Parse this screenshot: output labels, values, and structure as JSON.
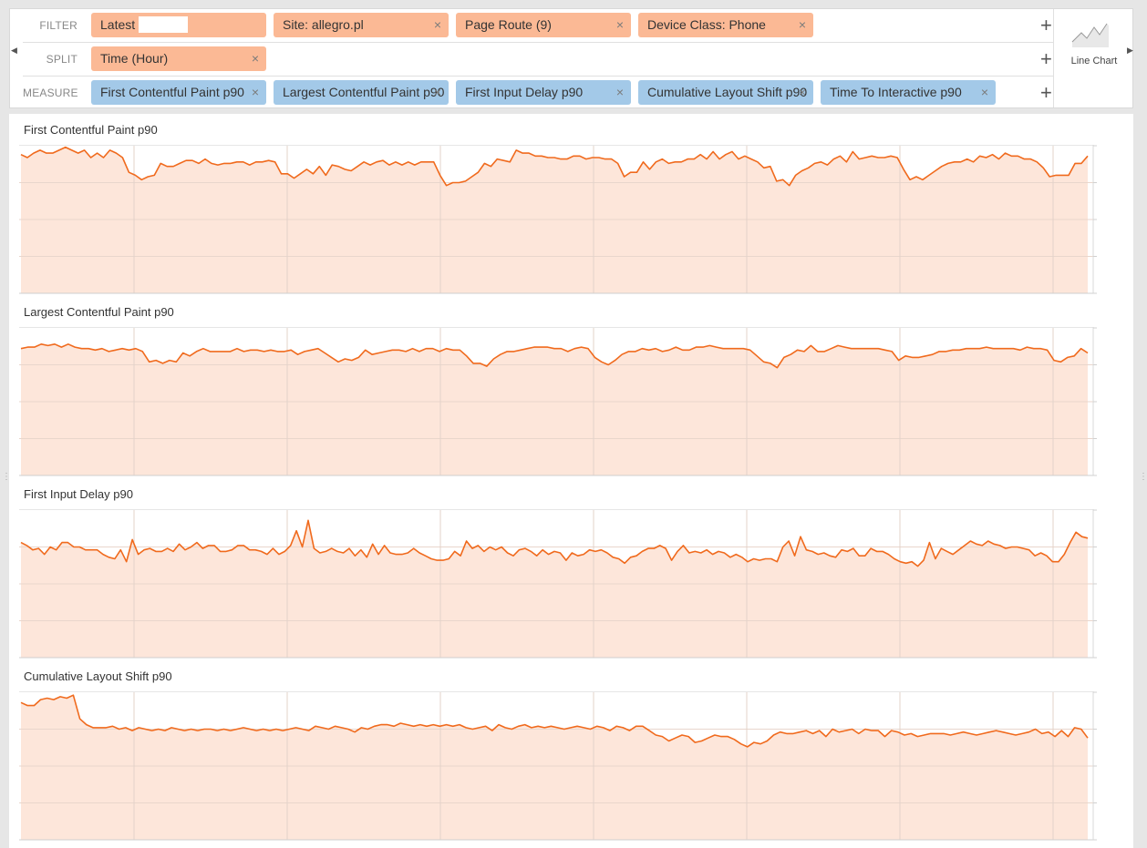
{
  "rows": {
    "filter": {
      "label": "FILTER",
      "pills": [
        {
          "label": "Latest"
        },
        {
          "label": "Site:  allegro.pl"
        },
        {
          "label": "Page Route  (9)"
        },
        {
          "label": "Device Class:  Phone"
        }
      ]
    },
    "split": {
      "label": "SPLIT",
      "pills": [
        {
          "label": "Time (Hour)"
        }
      ]
    },
    "measure": {
      "label": "MEASURE",
      "pills": [
        {
          "label": "First Contentful Paint p90"
        },
        {
          "label": "Largest Contentful Paint p90"
        },
        {
          "label": "First Input Delay p90"
        },
        {
          "label": "Cumulative Layout Shift p90"
        },
        {
          "label": "Time To Interactive p90"
        }
      ]
    }
  },
  "remove_glyph": "×",
  "add_glyph": "+",
  "visualization": {
    "label": "Line Chart",
    "icon": "line-chart-icon"
  },
  "colors": {
    "line": "#f06a1d",
    "fill": "#fde6da",
    "filter_pill": "#fbb995",
    "measure_pill": "#a3c9e8"
  },
  "chart_data": [
    {
      "type": "area",
      "title": "First Contentful Paint p90",
      "ylim": [
        0,
        1
      ],
      "series": [
        {
          "values": [
            0.94,
            0.92,
            0.95,
            0.97,
            0.95,
            0.95,
            0.97,
            0.99,
            0.97,
            0.95,
            0.97,
            0.92,
            0.95,
            0.92,
            0.97,
            0.95,
            0.92,
            0.82,
            0.8,
            0.77,
            0.79,
            0.8,
            0.88,
            0.86,
            0.86,
            0.88,
            0.9,
            0.9,
            0.88,
            0.91,
            0.88,
            0.87,
            0.88,
            0.88,
            0.89,
            0.89,
            0.87,
            0.89,
            0.89,
            0.9,
            0.89,
            0.81,
            0.81,
            0.78,
            0.81,
            0.84,
            0.81,
            0.86,
            0.8,
            0.87,
            0.86,
            0.84,
            0.83,
            0.86,
            0.89,
            0.87,
            0.89,
            0.9,
            0.87,
            0.89,
            0.87,
            0.89,
            0.87,
            0.89,
            0.89,
            0.89,
            0.8,
            0.73,
            0.75,
            0.75,
            0.76,
            0.79,
            0.82,
            0.88,
            0.86,
            0.91,
            0.9,
            0.89,
            0.97,
            0.95,
            0.95,
            0.93,
            0.93,
            0.92,
            0.92,
            0.91,
            0.91,
            0.93,
            0.93,
            0.91,
            0.92,
            0.92,
            0.91,
            0.91,
            0.88,
            0.79,
            0.82,
            0.82,
            0.89,
            0.84,
            0.89,
            0.91,
            0.88,
            0.89,
            0.89,
            0.91,
            0.91,
            0.94,
            0.91,
            0.96,
            0.91,
            0.94,
            0.96,
            0.91,
            0.93,
            0.91,
            0.89,
            0.85,
            0.86,
            0.76,
            0.77,
            0.73,
            0.8,
            0.83,
            0.85,
            0.88,
            0.89,
            0.87,
            0.91,
            0.93,
            0.89,
            0.96,
            0.91,
            0.92,
            0.93,
            0.92,
            0.92,
            0.93,
            0.92,
            0.84,
            0.77,
            0.79,
            0.77,
            0.8,
            0.83,
            0.86,
            0.88,
            0.89,
            0.89,
            0.91,
            0.89,
            0.93,
            0.92,
            0.94,
            0.91,
            0.95,
            0.93,
            0.93,
            0.91,
            0.91,
            0.89,
            0.85,
            0.79,
            0.8,
            0.8,
            0.8,
            0.88,
            0.88,
            0.93
          ]
        }
      ]
    },
    {
      "type": "area",
      "title": "Largest Contentful Paint p90",
      "ylim": [
        0,
        1
      ],
      "series": [
        {
          "values": [
            0.86,
            0.87,
            0.87,
            0.89,
            0.88,
            0.89,
            0.87,
            0.89,
            0.87,
            0.86,
            0.86,
            0.85,
            0.86,
            0.84,
            0.85,
            0.86,
            0.85,
            0.86,
            0.84,
            0.77,
            0.78,
            0.76,
            0.78,
            0.77,
            0.83,
            0.81,
            0.84,
            0.86,
            0.84,
            0.84,
            0.84,
            0.84,
            0.86,
            0.84,
            0.85,
            0.85,
            0.84,
            0.85,
            0.84,
            0.84,
            0.85,
            0.82,
            0.84,
            0.85,
            0.86,
            0.83,
            0.8,
            0.77,
            0.79,
            0.78,
            0.8,
            0.85,
            0.82,
            0.83,
            0.84,
            0.85,
            0.85,
            0.84,
            0.86,
            0.84,
            0.86,
            0.86,
            0.84,
            0.86,
            0.85,
            0.85,
            0.81,
            0.76,
            0.76,
            0.74,
            0.79,
            0.82,
            0.84,
            0.84,
            0.85,
            0.86,
            0.87,
            0.87,
            0.87,
            0.86,
            0.86,
            0.84,
            0.86,
            0.87,
            0.86,
            0.8,
            0.77,
            0.75,
            0.78,
            0.82,
            0.84,
            0.84,
            0.86,
            0.85,
            0.86,
            0.84,
            0.85,
            0.87,
            0.85,
            0.85,
            0.87,
            0.87,
            0.88,
            0.87,
            0.86,
            0.86,
            0.86,
            0.86,
            0.85,
            0.81,
            0.77,
            0.76,
            0.73,
            0.8,
            0.82,
            0.85,
            0.84,
            0.88,
            0.84,
            0.84,
            0.86,
            0.88,
            0.87,
            0.86,
            0.86,
            0.86,
            0.86,
            0.86,
            0.85,
            0.84,
            0.78,
            0.81,
            0.8,
            0.8,
            0.81,
            0.82,
            0.84,
            0.84,
            0.85,
            0.85,
            0.86,
            0.86,
            0.86,
            0.87,
            0.86,
            0.86,
            0.86,
            0.86,
            0.85,
            0.87,
            0.86,
            0.86,
            0.85,
            0.78,
            0.77,
            0.8,
            0.81,
            0.86,
            0.83
          ]
        }
      ]
    },
    {
      "type": "area",
      "title": "First Input Delay p90",
      "ylim": [
        0,
        1
      ],
      "series": [
        {
          "values": [
            0.78,
            0.76,
            0.73,
            0.74,
            0.7,
            0.75,
            0.73,
            0.78,
            0.78,
            0.75,
            0.75,
            0.73,
            0.73,
            0.73,
            0.7,
            0.68,
            0.67,
            0.73,
            0.65,
            0.8,
            0.7,
            0.73,
            0.74,
            0.72,
            0.72,
            0.74,
            0.72,
            0.77,
            0.73,
            0.75,
            0.78,
            0.74,
            0.76,
            0.76,
            0.72,
            0.72,
            0.73,
            0.76,
            0.76,
            0.73,
            0.73,
            0.72,
            0.7,
            0.74,
            0.7,
            0.72,
            0.76,
            0.86,
            0.75,
            0.93,
            0.74,
            0.71,
            0.72,
            0.74,
            0.72,
            0.71,
            0.74,
            0.69,
            0.73,
            0.68,
            0.77,
            0.7,
            0.76,
            0.71,
            0.7,
            0.7,
            0.71,
            0.74,
            0.71,
            0.69,
            0.67,
            0.66,
            0.66,
            0.67,
            0.72,
            0.69,
            0.79,
            0.74,
            0.76,
            0.72,
            0.75,
            0.73,
            0.75,
            0.71,
            0.69,
            0.73,
            0.74,
            0.72,
            0.69,
            0.73,
            0.7,
            0.72,
            0.71,
            0.66,
            0.71,
            0.69,
            0.7,
            0.73,
            0.72,
            0.73,
            0.71,
            0.68,
            0.67,
            0.64,
            0.68,
            0.69,
            0.72,
            0.74,
            0.74,
            0.76,
            0.74,
            0.66,
            0.72,
            0.76,
            0.71,
            0.72,
            0.71,
            0.73,
            0.7,
            0.72,
            0.71,
            0.68,
            0.7,
            0.68,
            0.65,
            0.67,
            0.66,
            0.67,
            0.67,
            0.65,
            0.75,
            0.79,
            0.69,
            0.82,
            0.73,
            0.72,
            0.7,
            0.71,
            0.69,
            0.68,
            0.73,
            0.72,
            0.74,
            0.69,
            0.69,
            0.74,
            0.72,
            0.72,
            0.7,
            0.67,
            0.65,
            0.64,
            0.65,
            0.62,
            0.66,
            0.78,
            0.67,
            0.74,
            0.72,
            0.7,
            0.73,
            0.76,
            0.79,
            0.77,
            0.76,
            0.79,
            0.77,
            0.76,
            0.74,
            0.75,
            0.75,
            0.74,
            0.73,
            0.69,
            0.71,
            0.69,
            0.65,
            0.65,
            0.7,
            0.78,
            0.85,
            0.82,
            0.81
          ]
        }
      ]
    },
    {
      "type": "area",
      "title": "Cumulative Layout Shift p90",
      "ylim": [
        0,
        1
      ],
      "series": [
        {
          "values": [
            0.93,
            0.91,
            0.91,
            0.95,
            0.96,
            0.95,
            0.97,
            0.96,
            0.98,
            0.82,
            0.78,
            0.76,
            0.76,
            0.76,
            0.77,
            0.75,
            0.76,
            0.74,
            0.76,
            0.75,
            0.74,
            0.75,
            0.74,
            0.76,
            0.75,
            0.74,
            0.75,
            0.74,
            0.75,
            0.75,
            0.74,
            0.75,
            0.74,
            0.75,
            0.76,
            0.75,
            0.74,
            0.75,
            0.74,
            0.75,
            0.74,
            0.75,
            0.76,
            0.75,
            0.74,
            0.77,
            0.76,
            0.75,
            0.77,
            0.76,
            0.75,
            0.73,
            0.76,
            0.75,
            0.77,
            0.78,
            0.78,
            0.77,
            0.79,
            0.78,
            0.77,
            0.78,
            0.77,
            0.78,
            0.77,
            0.78,
            0.77,
            0.78,
            0.76,
            0.75,
            0.76,
            0.77,
            0.74,
            0.78,
            0.76,
            0.75,
            0.77,
            0.78,
            0.76,
            0.77,
            0.76,
            0.77,
            0.76,
            0.75,
            0.76,
            0.77,
            0.76,
            0.75,
            0.77,
            0.76,
            0.74,
            0.77,
            0.76,
            0.74,
            0.77,
            0.77,
            0.74,
            0.71,
            0.7,
            0.67,
            0.69,
            0.71,
            0.7,
            0.66,
            0.67,
            0.69,
            0.71,
            0.7,
            0.7,
            0.68,
            0.65,
            0.63,
            0.66,
            0.65,
            0.67,
            0.71,
            0.73,
            0.72,
            0.72,
            0.73,
            0.74,
            0.72,
            0.74,
            0.7,
            0.75,
            0.73,
            0.74,
            0.75,
            0.72,
            0.75,
            0.74,
            0.74,
            0.7,
            0.74,
            0.73,
            0.71,
            0.72,
            0.7,
            0.71,
            0.72,
            0.72,
            0.72,
            0.71,
            0.72,
            0.73,
            0.72,
            0.71,
            0.72,
            0.73,
            0.74,
            0.73,
            0.72,
            0.71,
            0.72,
            0.73,
            0.75,
            0.72,
            0.73,
            0.7,
            0.74,
            0.7,
            0.76,
            0.75,
            0.69
          ]
        }
      ]
    }
  ]
}
